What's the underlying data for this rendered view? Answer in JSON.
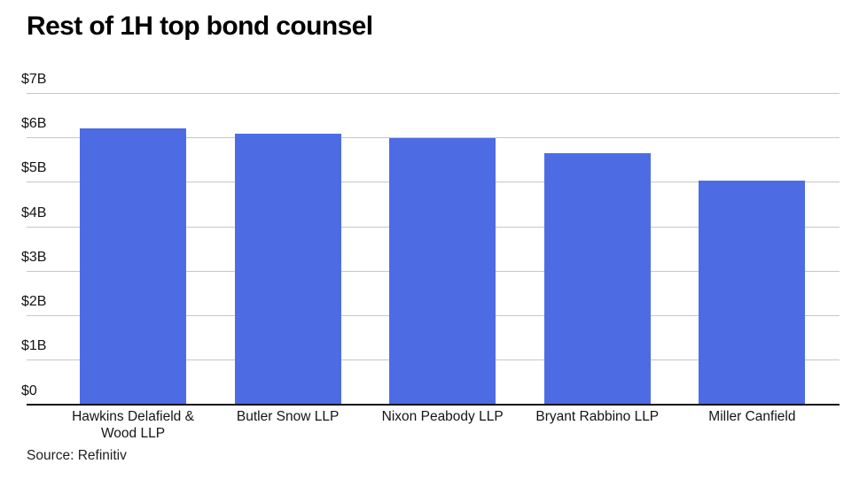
{
  "page": {
    "title": "Rest of 1H top bond counsel",
    "source_note": "Source: Refinitiv"
  },
  "chart_data": {
    "type": "bar",
    "title": "Rest of 1H top bond counsel",
    "categories": [
      "Hawkins Delafield & Wood LLP",
      "Butler Snow LLP",
      "Nixon Peabody LLP",
      "Bryant Rabbino LLP",
      "Miller Canfield"
    ],
    "values": [
      6.2,
      6.08,
      5.98,
      5.64,
      5.03
    ],
    "value_unit": "billions of dollars",
    "y_ticks": [
      {
        "label": "$7B",
        "value": 7
      },
      {
        "label": "$6B",
        "value": 6
      },
      {
        "label": "$5B",
        "value": 5
      },
      {
        "label": "$4B",
        "value": 4
      },
      {
        "label": "$3B",
        "value": 3
      },
      {
        "label": "$2B",
        "value": 2
      },
      {
        "label": "$1B",
        "value": 1
      },
      {
        "label": "$0",
        "value": 0
      }
    ],
    "ylim": [
      0,
      7
    ],
    "grid": true,
    "legend_position": "none",
    "bar_color": "#4d6ce4",
    "gridline_color": "#c6c6c6",
    "axis_color": "#111111",
    "xlabel": "",
    "ylabel": "",
    "source": "Source: Refinitiv"
  }
}
